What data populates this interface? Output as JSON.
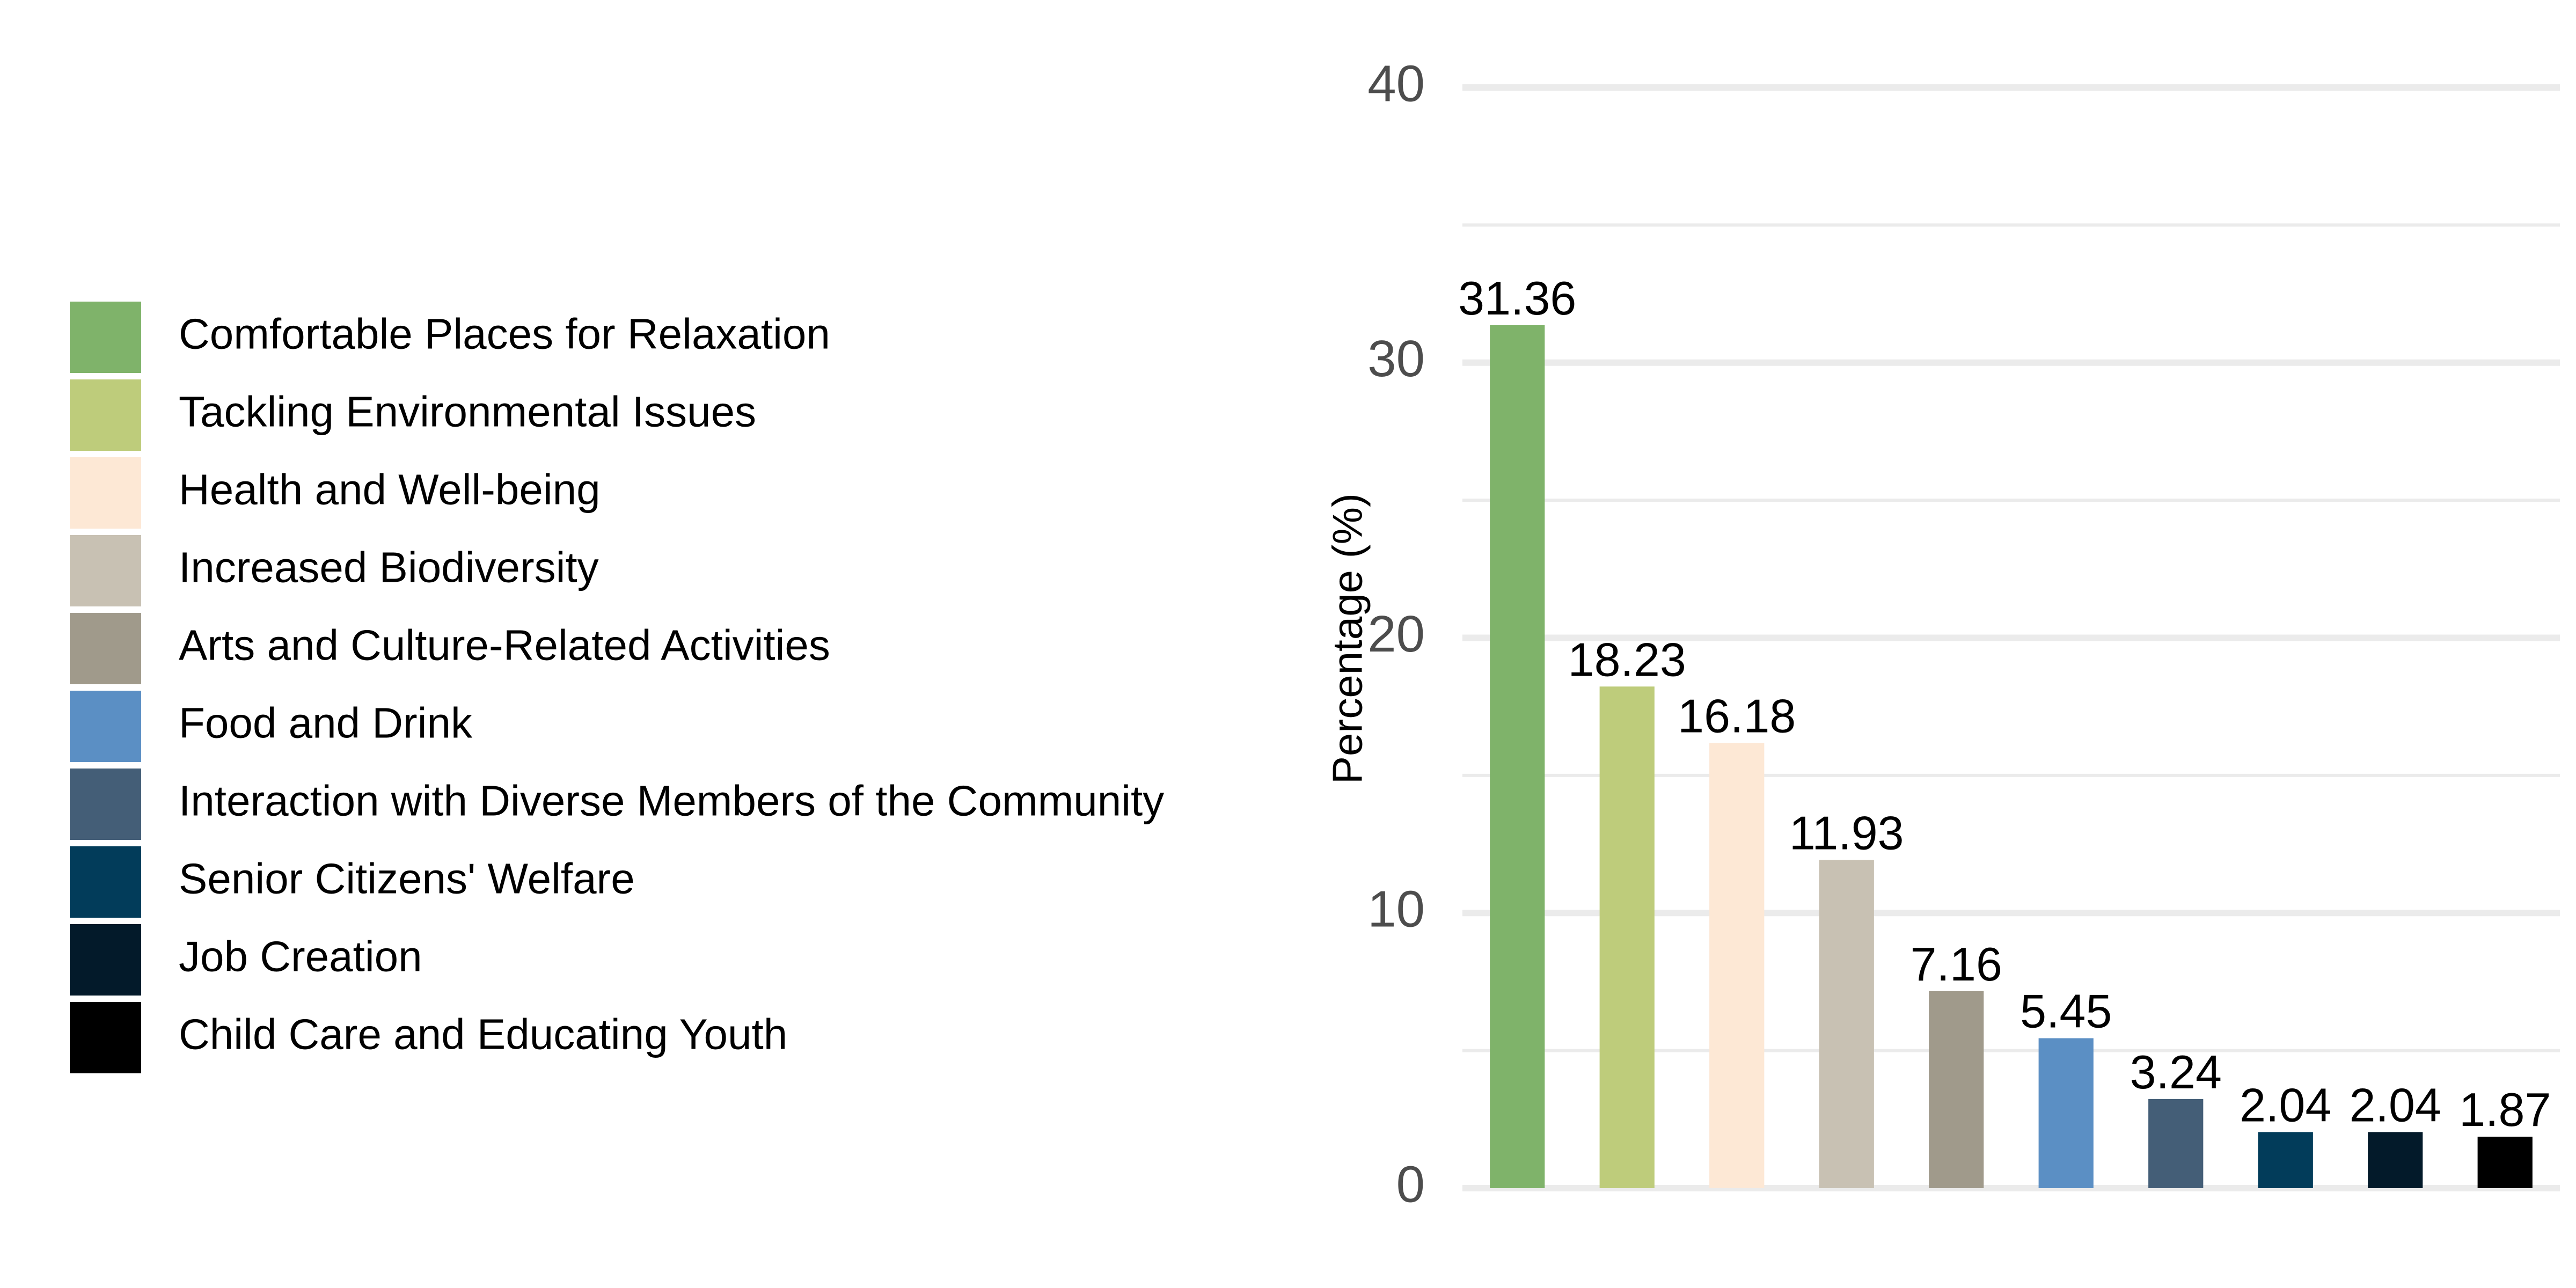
{
  "chart_data": {
    "type": "bar",
    "categories": [
      "Comfortable Places for Relaxation",
      "Tackling Environmental Issues",
      "Health and Well-being",
      "Increased Biodiversity",
      "Arts and Culture-Related Activities",
      "Food and Drink",
      "Interaction with Diverse Members of the Community",
      "Senior Citizens' Welfare",
      "Job Creation",
      "Child Care and Educating Youth"
    ],
    "values": [
      31.36,
      18.23,
      16.18,
      11.93,
      7.16,
      5.45,
      3.24,
      2.04,
      2.04,
      1.87
    ],
    "data_labels": [
      "31.36",
      "18.23",
      "16.18",
      "11.93",
      "7.16",
      "5.45",
      "3.24",
      "2.04",
      "2.04",
      "1.87"
    ],
    "colors": [
      "#7fb36a",
      "#becc7b",
      "#fde8d5",
      "#c8c1b3",
      "#a09a8b",
      "#5b8fc4",
      "#445e77",
      "#023c5a",
      "#031a2a",
      "#000000"
    ],
    "title": "",
    "xlabel": "",
    "ylabel": "Percentage (%)",
    "ylim": [
      0,
      40
    ],
    "y_ticks": [
      0,
      10,
      20,
      30,
      40
    ],
    "y_tick_labels": [
      "0",
      "10",
      "20",
      "30",
      "40"
    ],
    "grid": true,
    "legend": "left"
  }
}
